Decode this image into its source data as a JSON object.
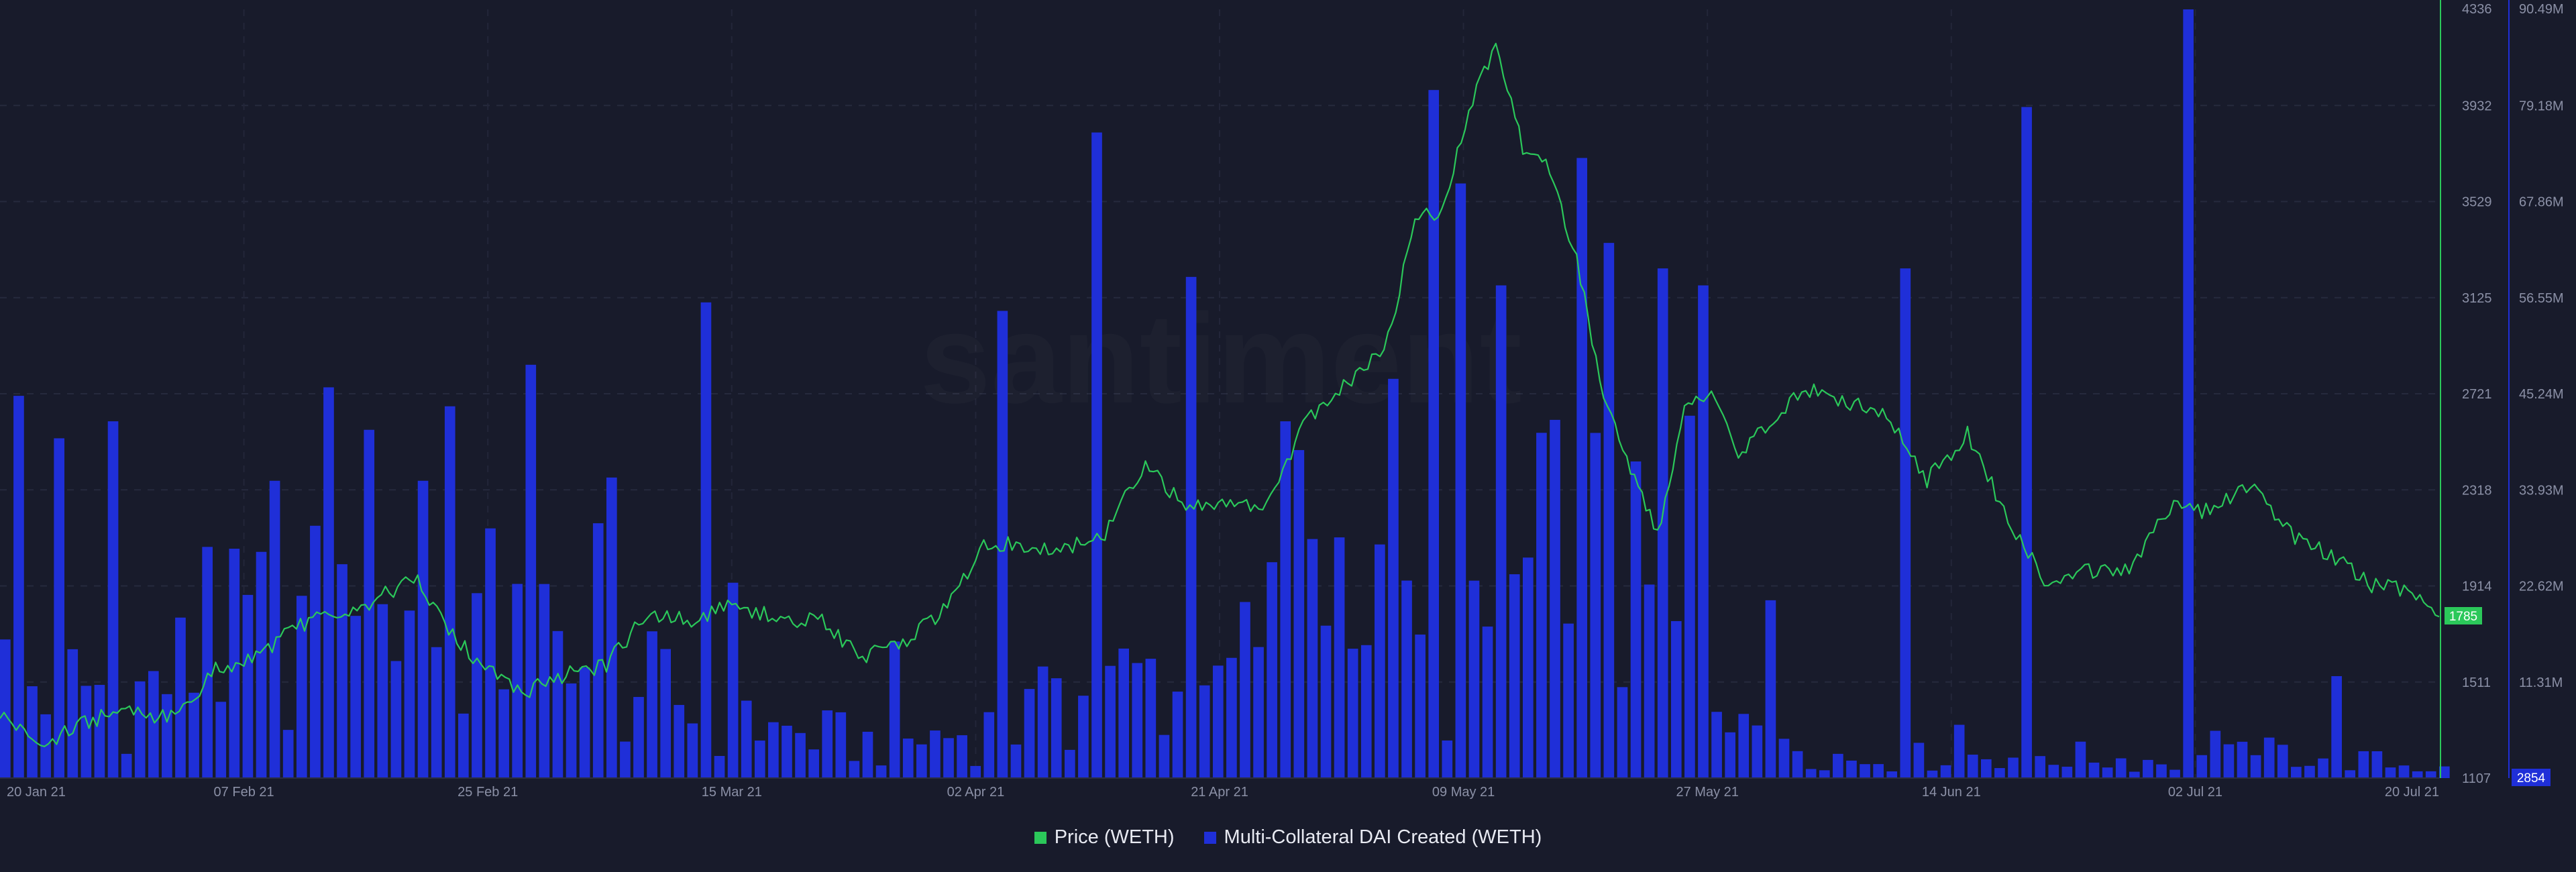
{
  "watermark": "santiment",
  "legend": {
    "price_label": "Price (WETH)",
    "dai_label": "Multi-Collateral DAI Created (WETH)"
  },
  "badges": {
    "price_current": "1785",
    "dai_current": "2854"
  },
  "chart_data": {
    "type": "bar+line",
    "x_labels": [
      "20 Jan 21",
      "07 Feb 21",
      "25 Feb 21",
      "15 Mar 21",
      "02 Apr 21",
      "21 Apr 21",
      "09 May 21",
      "27 May 21",
      "14 Jun 21",
      "02 Jul 21",
      "20 Jul 21"
    ],
    "x_range": [
      "2021-01-20",
      "2021-07-20"
    ],
    "price_axis": {
      "ticks": [
        "4336",
        "3932",
        "3529",
        "3125",
        "2721",
        "2318",
        "1914",
        "1511",
        "1107"
      ],
      "min": 1107,
      "max": 4336,
      "color": "#2bc85a"
    },
    "dai_axis": {
      "ticks": [
        "90.49M",
        "79.18M",
        "67.86M",
        "56.55M",
        "45.24M",
        "33.93M",
        "22.62M",
        "11.31M",
        "2854"
      ],
      "min": 0,
      "max": 90490000,
      "color": "#1f2fd8"
    },
    "grid": true,
    "series": [
      {
        "name": "Price (WETH)",
        "type": "line",
        "color": "#2bc85a",
        "points": [
          [
            "2021-01-20",
            1380
          ],
          [
            "2021-01-23",
            1240
          ],
          [
            "2021-01-26",
            1330
          ],
          [
            "2021-01-29",
            1390
          ],
          [
            "2021-02-02",
            1360
          ],
          [
            "2021-02-05",
            1560
          ],
          [
            "2021-02-08",
            1620
          ],
          [
            "2021-02-11",
            1740
          ],
          [
            "2021-02-14",
            1800
          ],
          [
            "2021-02-17",
            1860
          ],
          [
            "2021-02-20",
            1950
          ],
          [
            "2021-02-22",
            1740
          ],
          [
            "2021-02-25",
            1560
          ],
          [
            "2021-02-28",
            1470
          ],
          [
            "2021-03-03",
            1540
          ],
          [
            "2021-03-06",
            1580
          ],
          [
            "2021-03-09",
            1800
          ],
          [
            "2021-03-12",
            1770
          ],
          [
            "2021-03-15",
            1820
          ],
          [
            "2021-03-18",
            1790
          ],
          [
            "2021-03-22",
            1760
          ],
          [
            "2021-03-25",
            1620
          ],
          [
            "2021-03-28",
            1680
          ],
          [
            "2021-03-31",
            1810
          ],
          [
            "2021-04-03",
            2080
          ],
          [
            "2021-04-06",
            2090
          ],
          [
            "2021-04-09",
            2070
          ],
          [
            "2021-04-12",
            2130
          ],
          [
            "2021-04-15",
            2430
          ],
          [
            "2021-04-18",
            2240
          ],
          [
            "2021-04-21",
            2280
          ],
          [
            "2021-04-24",
            2250
          ],
          [
            "2021-04-27",
            2620
          ],
          [
            "2021-04-30",
            2760
          ],
          [
            "2021-05-03",
            2950
          ],
          [
            "2021-05-05",
            3450
          ],
          [
            "2021-05-07",
            3500
          ],
          [
            "2021-05-09",
            3920
          ],
          [
            "2021-05-11",
            4180
          ],
          [
            "2021-05-13",
            3760
          ],
          [
            "2021-05-15",
            3660
          ],
          [
            "2021-05-17",
            3280
          ],
          [
            "2021-05-19",
            2700
          ],
          [
            "2021-05-21",
            2400
          ],
          [
            "2021-05-23",
            2120
          ],
          [
            "2021-05-25",
            2650
          ],
          [
            "2021-05-27",
            2720
          ],
          [
            "2021-05-29",
            2450
          ],
          [
            "2021-05-31",
            2580
          ],
          [
            "2021-06-03",
            2740
          ],
          [
            "2021-06-06",
            2690
          ],
          [
            "2021-06-09",
            2620
          ],
          [
            "2021-06-12",
            2360
          ],
          [
            "2021-06-15",
            2550
          ],
          [
            "2021-06-18",
            2200
          ],
          [
            "2021-06-21",
            1920
          ],
          [
            "2021-06-24",
            1980
          ],
          [
            "2021-06-27",
            1990
          ],
          [
            "2021-06-30",
            2240
          ],
          [
            "2021-07-03",
            2230
          ],
          [
            "2021-07-06",
            2340
          ],
          [
            "2021-07-09",
            2130
          ],
          [
            "2021-07-12",
            2040
          ],
          [
            "2021-07-15",
            1920
          ],
          [
            "2021-07-18",
            1890
          ],
          [
            "2021-07-20",
            1785
          ]
        ]
      },
      {
        "name": "Multi-Collateral DAI Created (WETH)",
        "type": "bar",
        "color": "#1f2fd8",
        "points": [
          [
            "2021-01-21",
            45000000
          ],
          [
            "2021-01-24",
            40000000
          ],
          [
            "2021-01-28",
            42000000
          ],
          [
            "2021-02-09",
            35000000
          ],
          [
            "2021-02-13",
            46000000
          ],
          [
            "2021-02-16",
            41000000
          ],
          [
            "2021-02-20",
            35000000
          ],
          [
            "2021-03-05",
            30000000
          ],
          [
            "2021-03-13",
            56000000
          ],
          [
            "2021-03-15",
            23000000
          ],
          [
            "2021-04-04",
            55000000
          ],
          [
            "2021-04-11",
            76000000
          ],
          [
            "2021-04-18",
            59000000
          ],
          [
            "2021-04-25",
            42000000
          ],
          [
            "2021-05-03",
            47000000
          ],
          [
            "2021-05-06",
            81000000
          ],
          [
            "2021-05-08",
            70000000
          ],
          [
            "2021-05-11",
            58000000
          ],
          [
            "2021-05-17",
            73000000
          ],
          [
            "2021-05-19",
            63000000
          ],
          [
            "2021-05-23",
            60000000
          ],
          [
            "2021-05-26",
            58000000
          ],
          [
            "2021-06-10",
            60000000
          ],
          [
            "2021-06-19",
            79000000
          ],
          [
            "2021-07-01",
            90490000
          ],
          [
            "2021-07-12",
            12000000
          ]
        ]
      }
    ]
  }
}
